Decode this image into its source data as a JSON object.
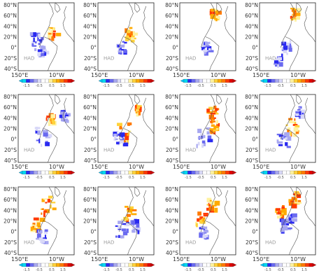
{
  "latitude_labels": [
    "80°N",
    "60°N",
    "40°N",
    "20°N",
    "0°",
    "20°S",
    "40°S"
  ],
  "longitude_labels": [
    "150°E",
    "10°W"
  ],
  "colorbar": {
    "tick_labels": [
      "-1.5",
      "-0.5",
      "0.5",
      "1.5"
    ],
    "colors": [
      "#00d8f0",
      "#2a2af0",
      "#6a6af0",
      "#a8a8f0",
      "#d8d8f8",
      "#ffffff",
      "#ffffff",
      "#fff2a0",
      "#ffd23a",
      "#ffaa00",
      "#ff7a00",
      "#ff3a00",
      "#e00000"
    ],
    "arrow_left_color": "#00c8ff",
    "arrow_right_color": "#d00000"
  },
  "coastline_color": "#505050",
  "panels": [
    {
      "id": "r1c1",
      "label": "HAD"
    },
    {
      "id": "r1c2",
      "label": "HAD"
    },
    {
      "id": "r1c3",
      "label": "HAD"
    },
    {
      "id": "r1c4",
      "label": "HAD"
    },
    {
      "id": "r2c1",
      "label": "HAD"
    },
    {
      "id": "r2c2",
      "label": "HAD"
    },
    {
      "id": "r2c3",
      "label": "HAD"
    },
    {
      "id": "r2c4",
      "label": "HAD"
    },
    {
      "id": "r3c1",
      "label": "HAD"
    },
    {
      "id": "r3c2",
      "label": "HAD"
    },
    {
      "id": "r3c3",
      "label": "HAD"
    },
    {
      "id": "r3c4",
      "label": "HAD"
    }
  ]
}
